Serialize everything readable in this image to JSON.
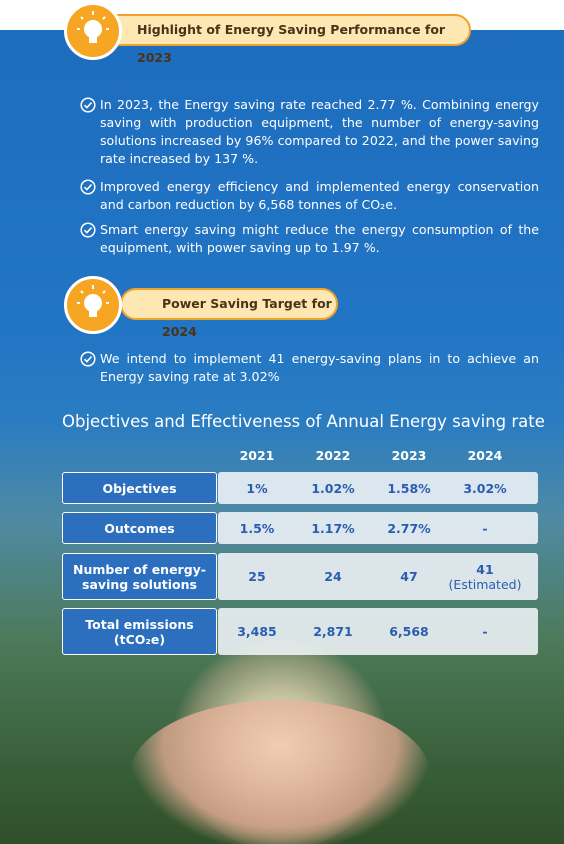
{
  "section_1": {
    "title": "Highlight of Energy Saving Performance for 2023",
    "bullets": [
      "In 2023, the Energy saving rate reached 2.77 %. Combining energy saving with production equipment, the number of energy-saving solutions increased by 96% compared to 2022, and the power saving rate increased by 137 %.",
      "Improved energy efficiency and implemented energy conservation and carbon reduction by 6,568 tonnes of CO₂e.",
      "Smart energy saving might reduce the energy consumption of the equipment, with power saving up to 1.97 %."
    ]
  },
  "section_2": {
    "title": "Power Saving Target for 2024",
    "bullets": [
      "We intend to implement 41 energy-saving plans in to achieve an Energy saving rate at 3.02%"
    ]
  },
  "table": {
    "title": "Objectives and Effectiveness of Annual Energy saving rate",
    "columns": [
      "2021",
      "2022",
      "2023",
      "2024"
    ],
    "rows": [
      {
        "label": "Objectives",
        "cells": [
          "1%",
          "1.02%",
          "1.58%",
          "3.02%"
        ]
      },
      {
        "label": "Outcomes",
        "cells": [
          "1.5%",
          "1.17%",
          "2.77%",
          "-"
        ]
      },
      {
        "label": "Number of energy-saving solutions",
        "cells": [
          "25",
          "24",
          "47",
          {
            "value": "41",
            "note": "(Estimated)"
          }
        ]
      },
      {
        "label": "Total emissions (tCO₂e)",
        "cells": [
          "3,485",
          "2,871",
          "6,568",
          "-"
        ]
      }
    ]
  }
}
